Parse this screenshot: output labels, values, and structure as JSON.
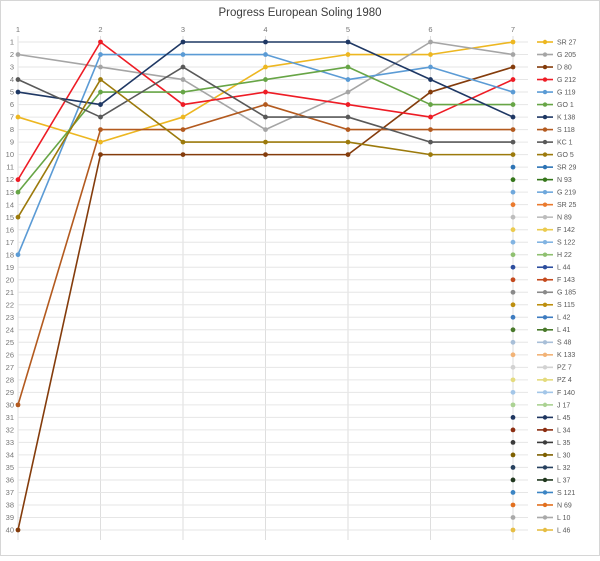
{
  "title": "Progress European Soling 1980",
  "colors": {
    "background": "#FFFFFF",
    "border": "#D6D6D6",
    "grid_horizontal": "#E6E6E6",
    "grid_vertical": "#DEDEDE",
    "axis_text": "#757575",
    "title_text": "#3C3C3C",
    "legend_text": "#595959"
  },
  "chart_data": {
    "type": "line",
    "title": "Progress European Soling 1980",
    "xlabel": "",
    "ylabel": "",
    "x_axis": {
      "position": "top",
      "ticks": [
        "1",
        "2",
        "3",
        "4",
        "5",
        "6",
        "7"
      ]
    },
    "y_axis": {
      "min": 1,
      "max": 40,
      "inverted": true,
      "tick_step": 1,
      "ticks": [
        "1",
        "2",
        "3",
        "4",
        "5",
        "6",
        "7",
        "8",
        "9",
        "10",
        "11",
        "12",
        "13",
        "14",
        "15",
        "16",
        "17",
        "18",
        "19",
        "20",
        "21",
        "22",
        "23",
        "24",
        "25",
        "26",
        "27",
        "28",
        "29",
        "30",
        "31",
        "32",
        "33",
        "34",
        "35",
        "36",
        "37",
        "38",
        "39",
        "40"
      ]
    },
    "grid": true,
    "legend_position": "right",
    "x": [
      1,
      2,
      3,
      4,
      5,
      6,
      7
    ],
    "series": [
      {
        "name": "SR 27",
        "color": "#EDB721",
        "values": [
          7,
          9,
          7,
          3,
          2,
          2,
          1
        ]
      },
      {
        "name": "G 205",
        "color": "#A5A5A5",
        "values": [
          2,
          3,
          4,
          8,
          5,
          1,
          2
        ]
      },
      {
        "name": "D 80",
        "color": "#843C0C",
        "values": [
          40,
          10,
          10,
          10,
          10,
          5,
          3
        ]
      },
      {
        "name": "G 212",
        "color": "#EE1C25",
        "values": [
          12,
          1,
          6,
          5,
          6,
          7,
          4
        ]
      },
      {
        "name": "G 119",
        "color": "#5B9BD5",
        "values": [
          18,
          2,
          2,
          2,
          4,
          3,
          5
        ]
      },
      {
        "name": "GO 1",
        "color": "#67A546",
        "values": [
          13,
          5,
          5,
          4,
          3,
          6,
          6
        ]
      },
      {
        "name": "K 138",
        "color": "#1F3864",
        "values": [
          5,
          6,
          1,
          1,
          1,
          4,
          7
        ]
      },
      {
        "name": "S 118",
        "color": "#B35A1F",
        "values": [
          30,
          8,
          8,
          6,
          8,
          8,
          8
        ]
      },
      {
        "name": "KC 1",
        "color": "#595959",
        "values": [
          4,
          7,
          3,
          7,
          7,
          9,
          9
        ]
      },
      {
        "name": "GO 5",
        "color": "#9C7A0C",
        "values": [
          15,
          4,
          9,
          9,
          9,
          10,
          10
        ]
      },
      {
        "name": "SR 29",
        "color": "#2E74B5",
        "values": [
          null,
          null,
          null,
          null,
          null,
          null,
          11
        ]
      },
      {
        "name": "N 93",
        "color": "#35761B",
        "values": [
          null,
          null,
          null,
          null,
          null,
          null,
          12
        ]
      },
      {
        "name": "G 219",
        "color": "#6FA8DC",
        "values": [
          null,
          null,
          null,
          null,
          null,
          null,
          13
        ]
      },
      {
        "name": "SR 25",
        "color": "#EA7A2E",
        "values": [
          null,
          null,
          null,
          null,
          null,
          null,
          14
        ]
      },
      {
        "name": "N 89",
        "color": "#BDBDBD",
        "values": [
          null,
          null,
          null,
          null,
          null,
          null,
          15
        ]
      },
      {
        "name": "F 142",
        "color": "#EBCB4F",
        "values": [
          null,
          null,
          null,
          null,
          null,
          null,
          16
        ]
      },
      {
        "name": "S 122",
        "color": "#82B4E2",
        "values": [
          null,
          null,
          null,
          null,
          null,
          null,
          17
        ]
      },
      {
        "name": "H 22",
        "color": "#8FC070",
        "values": [
          null,
          null,
          null,
          null,
          null,
          null,
          18
        ]
      },
      {
        "name": "L 44",
        "color": "#2D4E9E",
        "values": [
          null,
          null,
          null,
          null,
          null,
          null,
          19
        ]
      },
      {
        "name": "F 143",
        "color": "#C44A1E",
        "values": [
          null,
          null,
          null,
          null,
          null,
          null,
          20
        ]
      },
      {
        "name": "G 185",
        "color": "#8A8A8A",
        "values": [
          null,
          null,
          null,
          null,
          null,
          null,
          21
        ]
      },
      {
        "name": "S 115",
        "color": "#BD8F0F",
        "values": [
          null,
          null,
          null,
          null,
          null,
          null,
          22
        ]
      },
      {
        "name": "L 42",
        "color": "#3E7CC0",
        "values": [
          null,
          null,
          null,
          null,
          null,
          null,
          23
        ]
      },
      {
        "name": "L 41",
        "color": "#49792B",
        "values": [
          null,
          null,
          null,
          null,
          null,
          null,
          24
        ]
      },
      {
        "name": "S 48",
        "color": "#A8BFD8",
        "values": [
          null,
          null,
          null,
          null,
          null,
          null,
          25
        ]
      },
      {
        "name": "K 133",
        "color": "#F2B377",
        "values": [
          null,
          null,
          null,
          null,
          null,
          null,
          26
        ]
      },
      {
        "name": "PZ 7",
        "color": "#D2D2D2",
        "values": [
          null,
          null,
          null,
          null,
          null,
          null,
          27
        ]
      },
      {
        "name": "PZ 4",
        "color": "#E4DB7E",
        "values": [
          null,
          null,
          null,
          null,
          null,
          null,
          28
        ]
      },
      {
        "name": "F 140",
        "color": "#A3C6E8",
        "values": [
          null,
          null,
          null,
          null,
          null,
          null,
          29
        ]
      },
      {
        "name": "J 17",
        "color": "#ABD293",
        "values": [
          null,
          null,
          null,
          null,
          null,
          null,
          30
        ]
      },
      {
        "name": "L 45",
        "color": "#1F3660",
        "values": [
          null,
          null,
          null,
          null,
          null,
          null,
          31
        ]
      },
      {
        "name": "L 34",
        "color": "#8C2E12",
        "values": [
          null,
          null,
          null,
          null,
          null,
          null,
          32
        ]
      },
      {
        "name": "L 35",
        "color": "#3B3B3B",
        "values": [
          null,
          null,
          null,
          null,
          null,
          null,
          33
        ]
      },
      {
        "name": "L 30",
        "color": "#7E6000",
        "values": [
          null,
          null,
          null,
          null,
          null,
          null,
          34
        ]
      },
      {
        "name": "L 32",
        "color": "#27415F",
        "values": [
          null,
          null,
          null,
          null,
          null,
          null,
          35
        ]
      },
      {
        "name": "L 37",
        "color": "#21381F",
        "values": [
          null,
          null,
          null,
          null,
          null,
          null,
          36
        ]
      },
      {
        "name": "S 121",
        "color": "#3C85C4",
        "values": [
          null,
          null,
          null,
          null,
          null,
          null,
          37
        ]
      },
      {
        "name": "N 69",
        "color": "#E2701F",
        "values": [
          null,
          null,
          null,
          null,
          null,
          null,
          38
        ]
      },
      {
        "name": "L 10",
        "color": "#A9A9A9",
        "values": [
          null,
          null,
          null,
          null,
          null,
          null,
          39
        ]
      },
      {
        "name": "L 46",
        "color": "#E6BE45",
        "values": [
          null,
          null,
          null,
          null,
          null,
          null,
          40
        ]
      }
    ]
  }
}
